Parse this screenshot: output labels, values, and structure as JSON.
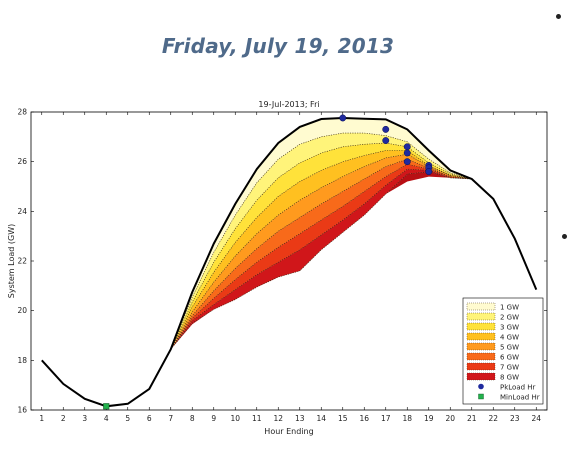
{
  "slide": {
    "title": "Friday, July 19, 2013"
  },
  "chart_data": {
    "type": "area",
    "title": "19-Jul-2013; Fri",
    "xlabel": "Hour Ending",
    "ylabel": "System Load (GW)",
    "xlim": [
      0.5,
      24.5
    ],
    "ylim": [
      16,
      28
    ],
    "x_ticks": [
      1,
      2,
      3,
      4,
      5,
      6,
      7,
      8,
      9,
      10,
      11,
      12,
      13,
      14,
      15,
      16,
      17,
      18,
      19,
      20,
      21,
      22,
      23,
      24
    ],
    "y_ticks": [
      16,
      18,
      20,
      22,
      24,
      26,
      28
    ],
    "grid": false,
    "legend_position": "bottom-right",
    "x": [
      1,
      2,
      3,
      4,
      5,
      6,
      7,
      8,
      9,
      10,
      11,
      12,
      13,
      14,
      15,
      16,
      17,
      18,
      19,
      20,
      21,
      22,
      23,
      24
    ],
    "system_load": [
      18.0,
      17.05,
      16.45,
      16.15,
      16.25,
      16.85,
      18.45,
      20.75,
      22.7,
      24.3,
      25.7,
      26.75,
      27.4,
      27.72,
      27.76,
      27.73,
      27.7,
      27.3,
      26.45,
      25.65,
      25.3,
      24.5,
      22.9,
      20.85
    ],
    "reduction_bands": [
      {
        "name": "1 GW",
        "color": "#fffbd0",
        "start_hour": 7,
        "end_hour": 21,
        "values": [
          18.45,
          20.55,
          22.35,
          23.85,
          25.15,
          26.1,
          26.7,
          27.0,
          27.15,
          27.15,
          27.05,
          26.8,
          26.1,
          25.55,
          25.3
        ]
      },
      {
        "name": "2 GW",
        "color": "#fff47a",
        "start_hour": 7,
        "end_hour": 21,
        "values": [
          18.45,
          20.35,
          21.95,
          23.3,
          24.45,
          25.35,
          25.95,
          26.35,
          26.6,
          26.7,
          26.75,
          26.6,
          25.95,
          25.5,
          25.3
        ]
      },
      {
        "name": "3 GW",
        "color": "#ffe23a",
        "start_hour": 7,
        "end_hour": 21,
        "values": [
          18.45,
          20.15,
          21.55,
          22.75,
          23.75,
          24.6,
          25.2,
          25.65,
          26.0,
          26.25,
          26.45,
          26.45,
          25.85,
          25.45,
          25.3
        ]
      },
      {
        "name": "4 GW",
        "color": "#ffc020",
        "start_hour": 7,
        "end_hour": 21,
        "values": [
          18.45,
          19.95,
          21.15,
          22.2,
          23.1,
          23.85,
          24.45,
          24.95,
          25.4,
          25.8,
          26.15,
          26.3,
          25.8,
          25.45,
          25.3
        ]
      },
      {
        "name": "5 GW",
        "color": "#ff9a1e",
        "start_hour": 7,
        "end_hour": 21,
        "values": [
          18.45,
          19.8,
          20.8,
          21.7,
          22.5,
          23.2,
          23.75,
          24.3,
          24.8,
          25.3,
          25.8,
          26.1,
          25.75,
          25.4,
          25.3
        ]
      },
      {
        "name": "6 GW",
        "color": "#f86a1a",
        "start_hour": 7,
        "end_hour": 21,
        "values": [
          18.45,
          19.7,
          20.5,
          21.25,
          21.95,
          22.55,
          23.1,
          23.65,
          24.2,
          24.8,
          25.4,
          25.9,
          25.7,
          25.4,
          25.3
        ]
      },
      {
        "name": "7 GW",
        "color": "#ea3a16",
        "start_hour": 7,
        "end_hour": 21,
        "values": [
          18.45,
          19.6,
          20.25,
          20.85,
          21.45,
          21.95,
          22.45,
          23.05,
          23.65,
          24.3,
          25.05,
          25.7,
          25.65,
          25.35,
          25.3
        ]
      },
      {
        "name": "8 GW",
        "color": "#d0161a",
        "start_hour": 7,
        "end_hour": 21,
        "values": [
          18.45,
          19.5,
          20.05,
          20.45,
          20.95,
          21.35,
          21.6,
          22.45,
          23.15,
          23.85,
          24.7,
          25.5,
          25.6,
          25.35,
          25.3
        ]
      }
    ],
    "band_floor": {
      "start_hour": 7,
      "end_hour": 21,
      "values": [
        18.45,
        19.45,
        20.05,
        20.45,
        20.95,
        21.35,
        21.6,
        22.45,
        23.15,
        23.85,
        24.7,
        25.2,
        25.4,
        25.35,
        25.3
      ]
    },
    "pk_load_points": {
      "name": "PkLoad Hr",
      "color": "#1f2a9e",
      "x": [
        15,
        17,
        17,
        18,
        18,
        18,
        19,
        19,
        19
      ],
      "y": [
        27.76,
        27.3,
        26.85,
        26.6,
        26.35,
        26.0,
        25.85,
        25.75,
        25.6
      ]
    },
    "min_load_points": {
      "name": "MinLoad Hr",
      "color": "#22b14c",
      "x": [
        4
      ],
      "y": [
        16.15
      ]
    },
    "legend": [
      "1 GW",
      "2 GW",
      "3 GW",
      "4 GW",
      "5 GW",
      "6 GW",
      "7 GW",
      "8 GW",
      "PkLoad Hr",
      "MinLoad Hr"
    ]
  }
}
